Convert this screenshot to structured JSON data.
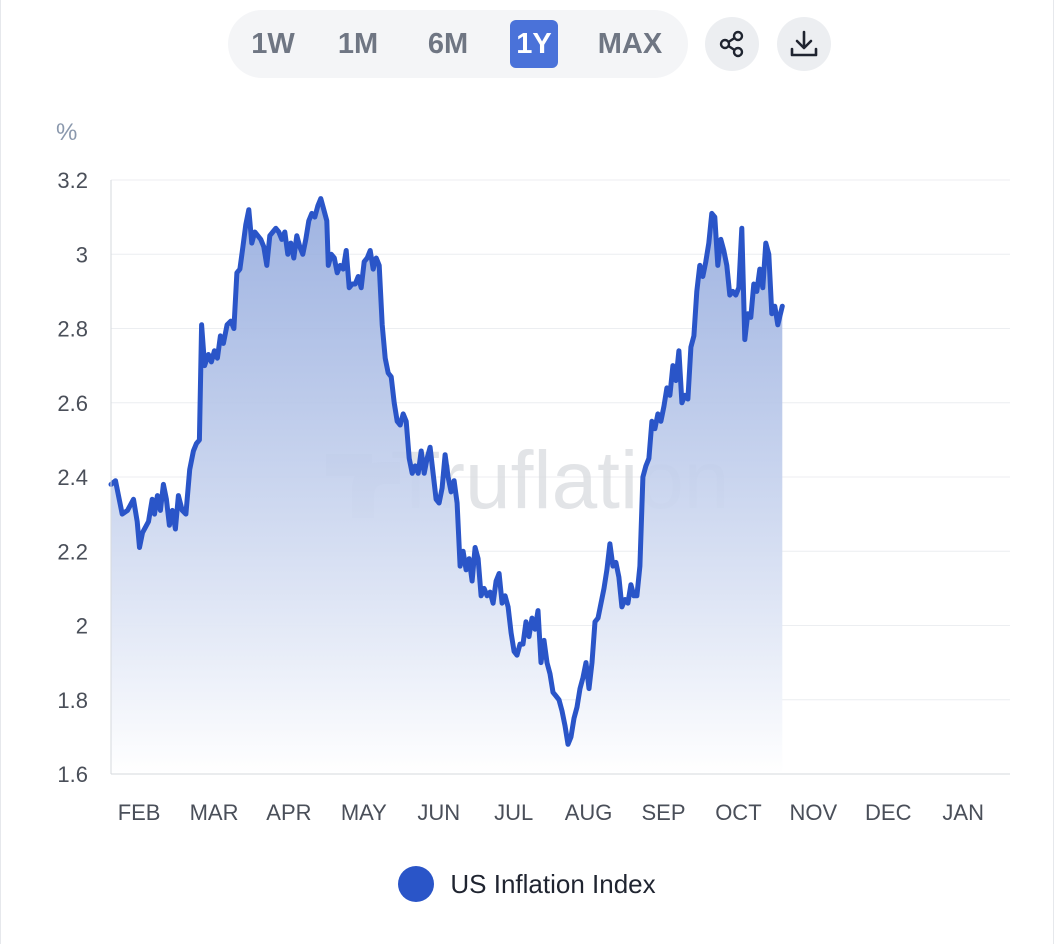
{
  "toolbar": {
    "ranges": [
      {
        "label": "1W",
        "active": false
      },
      {
        "label": "1M",
        "active": false
      },
      {
        "label": "6M",
        "active": false
      },
      {
        "label": "1Y",
        "active": true
      },
      {
        "label": "MAX",
        "active": false
      }
    ],
    "share_icon": "share-icon",
    "download_icon": "download-icon"
  },
  "watermark": "Truflation",
  "colors": {
    "line": "#2a55c8",
    "area_top": "#8ea6dc",
    "area_bottom": "#ffffff",
    "active_range": "#4a72d9"
  },
  "chart_data": {
    "type": "area",
    "ylabel": "%",
    "ylim": [
      1.6,
      3.2
    ],
    "yticks": [
      "1.6",
      "1.8",
      "2",
      "2.2",
      "2.4",
      "2.6",
      "2.8",
      "3",
      "3.2"
    ],
    "xticks": [
      "FEB",
      "MAR",
      "APR",
      "MAY",
      "JUN",
      "JUL",
      "AUG",
      "SEP",
      "OCT",
      "NOV",
      "DEC",
      "JAN"
    ],
    "grid": "horizontal",
    "legend_position": "bottom-center",
    "x_domain": [
      0,
      12
    ],
    "series": [
      {
        "name": "US Inflation Index",
        "points": [
          [
            0.0,
            2.38
          ],
          [
            0.06,
            2.39
          ],
          [
            0.15,
            2.3
          ],
          [
            0.22,
            2.31
          ],
          [
            0.3,
            2.34
          ],
          [
            0.35,
            2.28
          ],
          [
            0.38,
            2.21
          ],
          [
            0.42,
            2.25
          ],
          [
            0.5,
            2.28
          ],
          [
            0.55,
            2.34
          ],
          [
            0.58,
            2.3
          ],
          [
            0.62,
            2.35
          ],
          [
            0.66,
            2.31
          ],
          [
            0.7,
            2.38
          ],
          [
            0.74,
            2.34
          ],
          [
            0.78,
            2.27
          ],
          [
            0.82,
            2.31
          ],
          [
            0.86,
            2.26
          ],
          [
            0.9,
            2.35
          ],
          [
            0.95,
            2.31
          ],
          [
            1.0,
            2.3
          ],
          [
            1.05,
            2.42
          ],
          [
            1.1,
            2.47
          ],
          [
            1.14,
            2.49
          ],
          [
            1.18,
            2.5
          ],
          [
            1.21,
            2.81
          ],
          [
            1.25,
            2.7
          ],
          [
            1.3,
            2.73
          ],
          [
            1.34,
            2.71
          ],
          [
            1.38,
            2.74
          ],
          [
            1.42,
            2.72
          ],
          [
            1.46,
            2.78
          ],
          [
            1.5,
            2.76
          ],
          [
            1.55,
            2.81
          ],
          [
            1.6,
            2.82
          ],
          [
            1.64,
            2.8
          ],
          [
            1.68,
            2.95
          ],
          [
            1.72,
            2.96
          ],
          [
            1.76,
            3.02
          ],
          [
            1.8,
            3.08
          ],
          [
            1.84,
            3.12
          ],
          [
            1.88,
            3.03
          ],
          [
            1.92,
            3.06
          ],
          [
            1.96,
            3.05
          ],
          [
            2.0,
            3.04
          ],
          [
            2.04,
            3.02
          ],
          [
            2.08,
            2.97
          ],
          [
            2.12,
            3.05
          ],
          [
            2.16,
            3.06
          ],
          [
            2.2,
            3.07
          ],
          [
            2.24,
            3.06
          ],
          [
            2.28,
            3.04
          ],
          [
            2.32,
            3.06
          ],
          [
            2.36,
            3.0
          ],
          [
            2.4,
            3.03
          ],
          [
            2.44,
            2.99
          ],
          [
            2.48,
            3.05
          ],
          [
            2.52,
            3.02
          ],
          [
            2.56,
            3.0
          ],
          [
            2.6,
            3.04
          ],
          [
            2.64,
            3.09
          ],
          [
            2.68,
            3.11
          ],
          [
            2.72,
            3.1
          ],
          [
            2.76,
            3.13
          ],
          [
            2.8,
            3.15
          ],
          [
            2.84,
            3.12
          ],
          [
            2.88,
            3.09
          ],
          [
            2.9,
            2.97
          ],
          [
            2.94,
            3.0
          ],
          [
            2.98,
            2.99
          ],
          [
            3.02,
            2.95
          ],
          [
            3.06,
            2.97
          ],
          [
            3.1,
            2.96
          ],
          [
            3.14,
            3.01
          ],
          [
            3.18,
            2.91
          ],
          [
            3.22,
            2.92
          ],
          [
            3.26,
            2.92
          ],
          [
            3.3,
            2.94
          ],
          [
            3.34,
            2.91
          ],
          [
            3.38,
            2.98
          ],
          [
            3.42,
            2.99
          ],
          [
            3.46,
            3.01
          ],
          [
            3.5,
            2.96
          ],
          [
            3.54,
            2.99
          ],
          [
            3.58,
            2.97
          ],
          [
            3.62,
            2.81
          ],
          [
            3.66,
            2.72
          ],
          [
            3.7,
            2.68
          ],
          [
            3.74,
            2.67
          ],
          [
            3.78,
            2.6
          ],
          [
            3.82,
            2.55
          ],
          [
            3.86,
            2.54
          ],
          [
            3.9,
            2.57
          ],
          [
            3.94,
            2.55
          ],
          [
            3.98,
            2.45
          ],
          [
            4.02,
            2.41
          ],
          [
            4.06,
            2.43
          ],
          [
            4.1,
            2.41
          ],
          [
            4.14,
            2.47
          ],
          [
            4.18,
            2.41
          ],
          [
            4.22,
            2.45
          ],
          [
            4.26,
            2.48
          ],
          [
            4.3,
            2.41
          ],
          [
            4.34,
            2.34
          ],
          [
            4.38,
            2.33
          ],
          [
            4.42,
            2.37
          ],
          [
            4.46,
            2.46
          ],
          [
            4.5,
            2.4
          ],
          [
            4.54,
            2.36
          ],
          [
            4.58,
            2.39
          ],
          [
            4.62,
            2.33
          ],
          [
            4.66,
            2.16
          ],
          [
            4.7,
            2.2
          ],
          [
            4.74,
            2.15
          ],
          [
            4.78,
            2.18
          ],
          [
            4.82,
            2.12
          ],
          [
            4.86,
            2.21
          ],
          [
            4.9,
            2.18
          ],
          [
            4.94,
            2.08
          ],
          [
            4.98,
            2.1
          ],
          [
            5.02,
            2.08
          ],
          [
            5.06,
            2.09
          ],
          [
            5.1,
            2.06
          ],
          [
            5.14,
            2.12
          ],
          [
            5.18,
            2.14
          ],
          [
            5.22,
            2.06
          ],
          [
            5.26,
            2.08
          ],
          [
            5.3,
            2.05
          ],
          [
            5.34,
            1.98
          ],
          [
            5.38,
            1.93
          ],
          [
            5.42,
            1.92
          ],
          [
            5.46,
            1.95
          ],
          [
            5.5,
            1.95
          ],
          [
            5.54,
            2.01
          ],
          [
            5.58,
            1.97
          ],
          [
            5.62,
            2.02
          ],
          [
            5.66,
            1.99
          ],
          [
            5.7,
            2.04
          ],
          [
            5.74,
            1.9
          ],
          [
            5.78,
            1.96
          ],
          [
            5.82,
            1.9
          ],
          [
            5.86,
            1.87
          ],
          [
            5.9,
            1.82
          ],
          [
            5.94,
            1.81
          ],
          [
            5.98,
            1.8
          ],
          [
            6.02,
            1.77
          ],
          [
            6.06,
            1.73
          ],
          [
            6.1,
            1.68
          ],
          [
            6.14,
            1.7
          ],
          [
            6.18,
            1.75
          ],
          [
            6.22,
            1.78
          ],
          [
            6.26,
            1.83
          ],
          [
            6.3,
            1.86
          ],
          [
            6.34,
            1.9
          ],
          [
            6.38,
            1.83
          ],
          [
            6.42,
            1.9
          ],
          [
            6.46,
            2.01
          ],
          [
            6.5,
            2.02
          ],
          [
            6.54,
            2.06
          ],
          [
            6.58,
            2.1
          ],
          [
            6.62,
            2.15
          ],
          [
            6.66,
            2.22
          ],
          [
            6.7,
            2.16
          ],
          [
            6.74,
            2.17
          ],
          [
            6.78,
            2.13
          ],
          [
            6.82,
            2.05
          ],
          [
            6.86,
            2.07
          ],
          [
            6.9,
            2.06
          ],
          [
            6.94,
            2.11
          ],
          [
            6.98,
            2.08
          ],
          [
            7.02,
            2.08
          ],
          [
            7.06,
            2.16
          ],
          [
            7.1,
            2.4
          ],
          [
            7.14,
            2.43
          ],
          [
            7.18,
            2.45
          ],
          [
            7.22,
            2.55
          ],
          [
            7.26,
            2.53
          ],
          [
            7.3,
            2.57
          ],
          [
            7.34,
            2.55
          ],
          [
            7.38,
            2.59
          ],
          [
            7.42,
            2.64
          ],
          [
            7.46,
            2.62
          ],
          [
            7.5,
            2.7
          ],
          [
            7.54,
            2.66
          ],
          [
            7.58,
            2.74
          ],
          [
            7.62,
            2.6
          ],
          [
            7.66,
            2.62
          ],
          [
            7.7,
            2.61
          ],
          [
            7.74,
            2.75
          ],
          [
            7.78,
            2.78
          ],
          [
            7.82,
            2.9
          ],
          [
            7.86,
            2.97
          ],
          [
            7.9,
            2.94
          ],
          [
            7.94,
            2.98
          ],
          [
            7.98,
            3.03
          ],
          [
            8.02,
            3.11
          ],
          [
            8.06,
            3.1
          ],
          [
            8.1,
            2.97
          ],
          [
            8.14,
            3.04
          ],
          [
            8.18,
            3.01
          ],
          [
            8.22,
            2.97
          ],
          [
            8.26,
            2.89
          ],
          [
            8.3,
            2.9
          ],
          [
            8.34,
            2.89
          ],
          [
            8.38,
            2.91
          ],
          [
            8.42,
            3.07
          ],
          [
            8.46,
            2.77
          ],
          [
            8.5,
            2.84
          ],
          [
            8.54,
            2.83
          ],
          [
            8.58,
            2.92
          ],
          [
            8.62,
            2.9
          ],
          [
            8.66,
            2.96
          ],
          [
            8.7,
            2.91
          ],
          [
            8.74,
            3.03
          ],
          [
            8.78,
            3.0
          ],
          [
            8.82,
            2.84
          ],
          [
            8.86,
            2.86
          ],
          [
            8.9,
            2.81
          ],
          [
            8.96,
            2.86
          ]
        ]
      }
    ]
  }
}
